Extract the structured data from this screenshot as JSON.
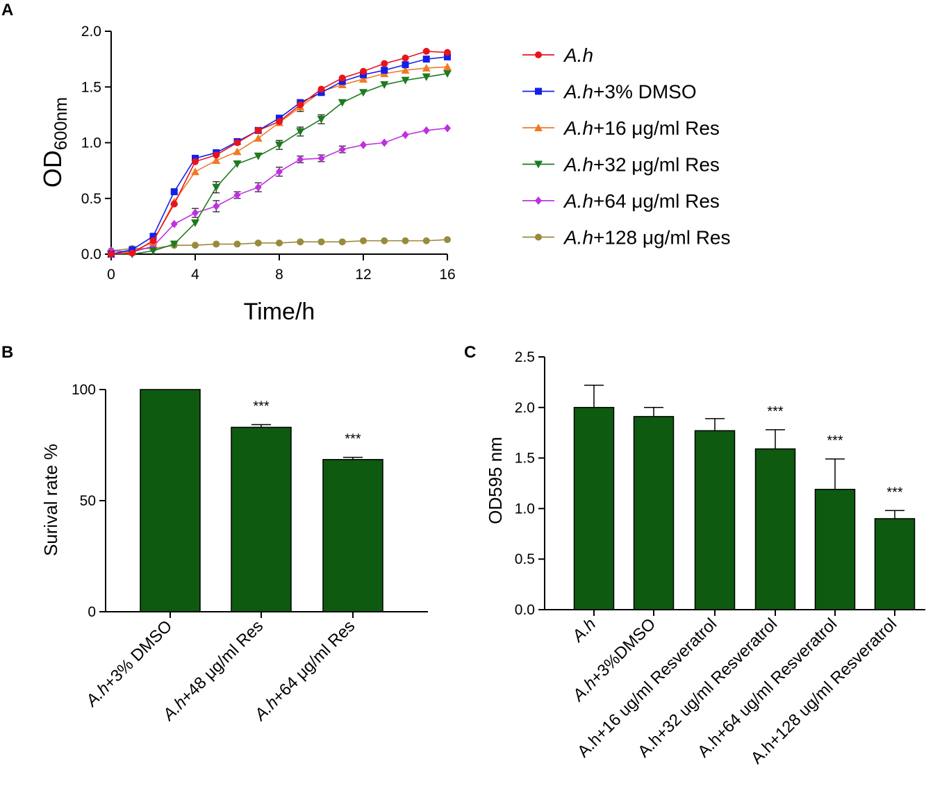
{
  "chart_data": [
    {
      "panel": "A",
      "type": "line",
      "ylabel": "OD",
      "ylabel_sub": "600nm",
      "xlabel": "Time/h",
      "xlim": [
        0,
        16
      ],
      "ylim": [
        0,
        2.0
      ],
      "x_ticks": [
        0,
        4,
        8,
        12,
        16
      ],
      "y_ticks": [
        0.0,
        0.5,
        1.0,
        1.5,
        2.0
      ],
      "x_tick_labels": [
        "0",
        "4",
        "8",
        "12",
        "16"
      ],
      "y_tick_labels": [
        "0.0",
        "0.5",
        "1.0",
        "1.5",
        "2.0"
      ],
      "x": [
        0,
        1,
        2,
        3,
        4,
        5,
        6,
        7,
        8,
        9,
        10,
        11,
        12,
        13,
        14,
        15,
        16
      ],
      "series": [
        {
          "name_italic": "A.h",
          "name_rest": "",
          "color": "#e8141c",
          "marker": "circle",
          "values": [
            0.0,
            0.01,
            0.12,
            0.45,
            0.83,
            0.89,
            1.0,
            1.11,
            1.19,
            1.34,
            1.48,
            1.58,
            1.64,
            1.71,
            1.76,
            1.82,
            1.81
          ]
        },
        {
          "name_italic": "A.h",
          "name_rest": "+3% DMSO",
          "color": "#1420e8",
          "marker": "square",
          "values": [
            0.0,
            0.04,
            0.16,
            0.56,
            0.86,
            0.91,
            1.01,
            1.11,
            1.22,
            1.36,
            1.45,
            1.55,
            1.61,
            1.65,
            1.7,
            1.75,
            1.77
          ]
        },
        {
          "name_italic": "A.h",
          "name_rest": "+16 μg/ml Res",
          "color": "#f07a24",
          "marker": "triangle-up",
          "errors": [
            0,
            0,
            0,
            0,
            0,
            0,
            0,
            0,
            0,
            0.04,
            0,
            0,
            0,
            0,
            0,
            0,
            0
          ],
          "values": [
            0.0,
            0.02,
            0.11,
            0.47,
            0.74,
            0.84,
            0.92,
            1.04,
            1.18,
            1.32,
            1.46,
            1.52,
            1.57,
            1.62,
            1.65,
            1.67,
            1.68
          ]
        },
        {
          "name_italic": "A.h",
          "name_rest": "+32 μg/ml Res",
          "color": "#1e7a1e",
          "marker": "triangle-down",
          "errors": [
            0,
            0,
            0,
            0,
            0,
            0.05,
            0,
            0,
            0.04,
            0.04,
            0.04,
            0,
            0,
            0,
            0,
            0,
            0
          ],
          "values": [
            0.0,
            0.0,
            0.03,
            0.09,
            0.28,
            0.6,
            0.81,
            0.88,
            0.98,
            1.1,
            1.21,
            1.36,
            1.45,
            1.52,
            1.56,
            1.59,
            1.62
          ]
        },
        {
          "name_italic": "A.h",
          "name_rest": "+64 μg/ml Res",
          "color": "#c030e0",
          "marker": "diamond",
          "errors": [
            0,
            0,
            0,
            0,
            0.04,
            0.05,
            0.03,
            0.04,
            0.04,
            0.03,
            0.03,
            0.03,
            0,
            0,
            0,
            0,
            0
          ],
          "values": [
            0.03,
            0.02,
            0.07,
            0.27,
            0.37,
            0.43,
            0.53,
            0.6,
            0.74,
            0.85,
            0.86,
            0.94,
            0.98,
            1.0,
            1.07,
            1.11,
            1.13
          ]
        },
        {
          "name_italic": "A.h",
          "name_rest": "+128 μg/ml Res",
          "color": "#9a8a3c",
          "marker": "circle",
          "values": [
            0.03,
            0.05,
            0.05,
            0.08,
            0.08,
            0.09,
            0.09,
            0.1,
            0.1,
            0.11,
            0.11,
            0.11,
            0.12,
            0.12,
            0.12,
            0.12,
            0.13
          ]
        }
      ]
    },
    {
      "panel": "B",
      "type": "bar",
      "ylabel": "Surival rate %",
      "ylim": [
        0,
        100
      ],
      "y_ticks": [
        0,
        50,
        100
      ],
      "y_tick_labels": [
        "0",
        "50",
        "100"
      ],
      "categories": [
        {
          "italic": "A.h",
          "rest": "+3% DMSO"
        },
        {
          "italic": "A.h",
          "rest": "+48 μg/ml Res"
        },
        {
          "italic": "A.h",
          "rest": "+64 μg/ml Res"
        }
      ],
      "values": [
        100,
        83,
        68.5
      ],
      "errors": [
        0,
        1.2,
        1.0
      ],
      "significance": [
        "",
        "***",
        "***"
      ],
      "bar_color": "#0e5a10"
    },
    {
      "panel": "C",
      "type": "bar",
      "ylabel": "OD595 nm",
      "ylim": [
        0,
        2.5
      ],
      "y_ticks": [
        0.0,
        0.5,
        1.0,
        1.5,
        2.0,
        2.5
      ],
      "y_tick_labels": [
        "0.0",
        "0.5",
        "1.0",
        "1.5",
        "2.0",
        "2.5"
      ],
      "categories": [
        {
          "italic": "A.h",
          "rest": ""
        },
        {
          "italic": "A.h",
          "rest": "+3%DMSO"
        },
        {
          "italic": "",
          "rest": "A.h+16 ug/ml Resveratrol"
        },
        {
          "italic": "",
          "rest": "A.h+32 ug/ml Resveratrol"
        },
        {
          "italic": "",
          "rest": "A.h+64 ug/ml Resveratrol"
        },
        {
          "italic": "",
          "rest": "A.h+128 ug/ml Resveratrol"
        }
      ],
      "values": [
        2.0,
        1.91,
        1.77,
        1.59,
        1.19,
        0.9
      ],
      "errors": [
        0.22,
        0.09,
        0.12,
        0.19,
        0.3,
        0.08
      ],
      "significance": [
        "",
        "",
        "",
        "***",
        "***",
        "***"
      ],
      "bar_color": "#0e5a10"
    }
  ],
  "panel_labels": [
    "A",
    "B",
    "C"
  ]
}
